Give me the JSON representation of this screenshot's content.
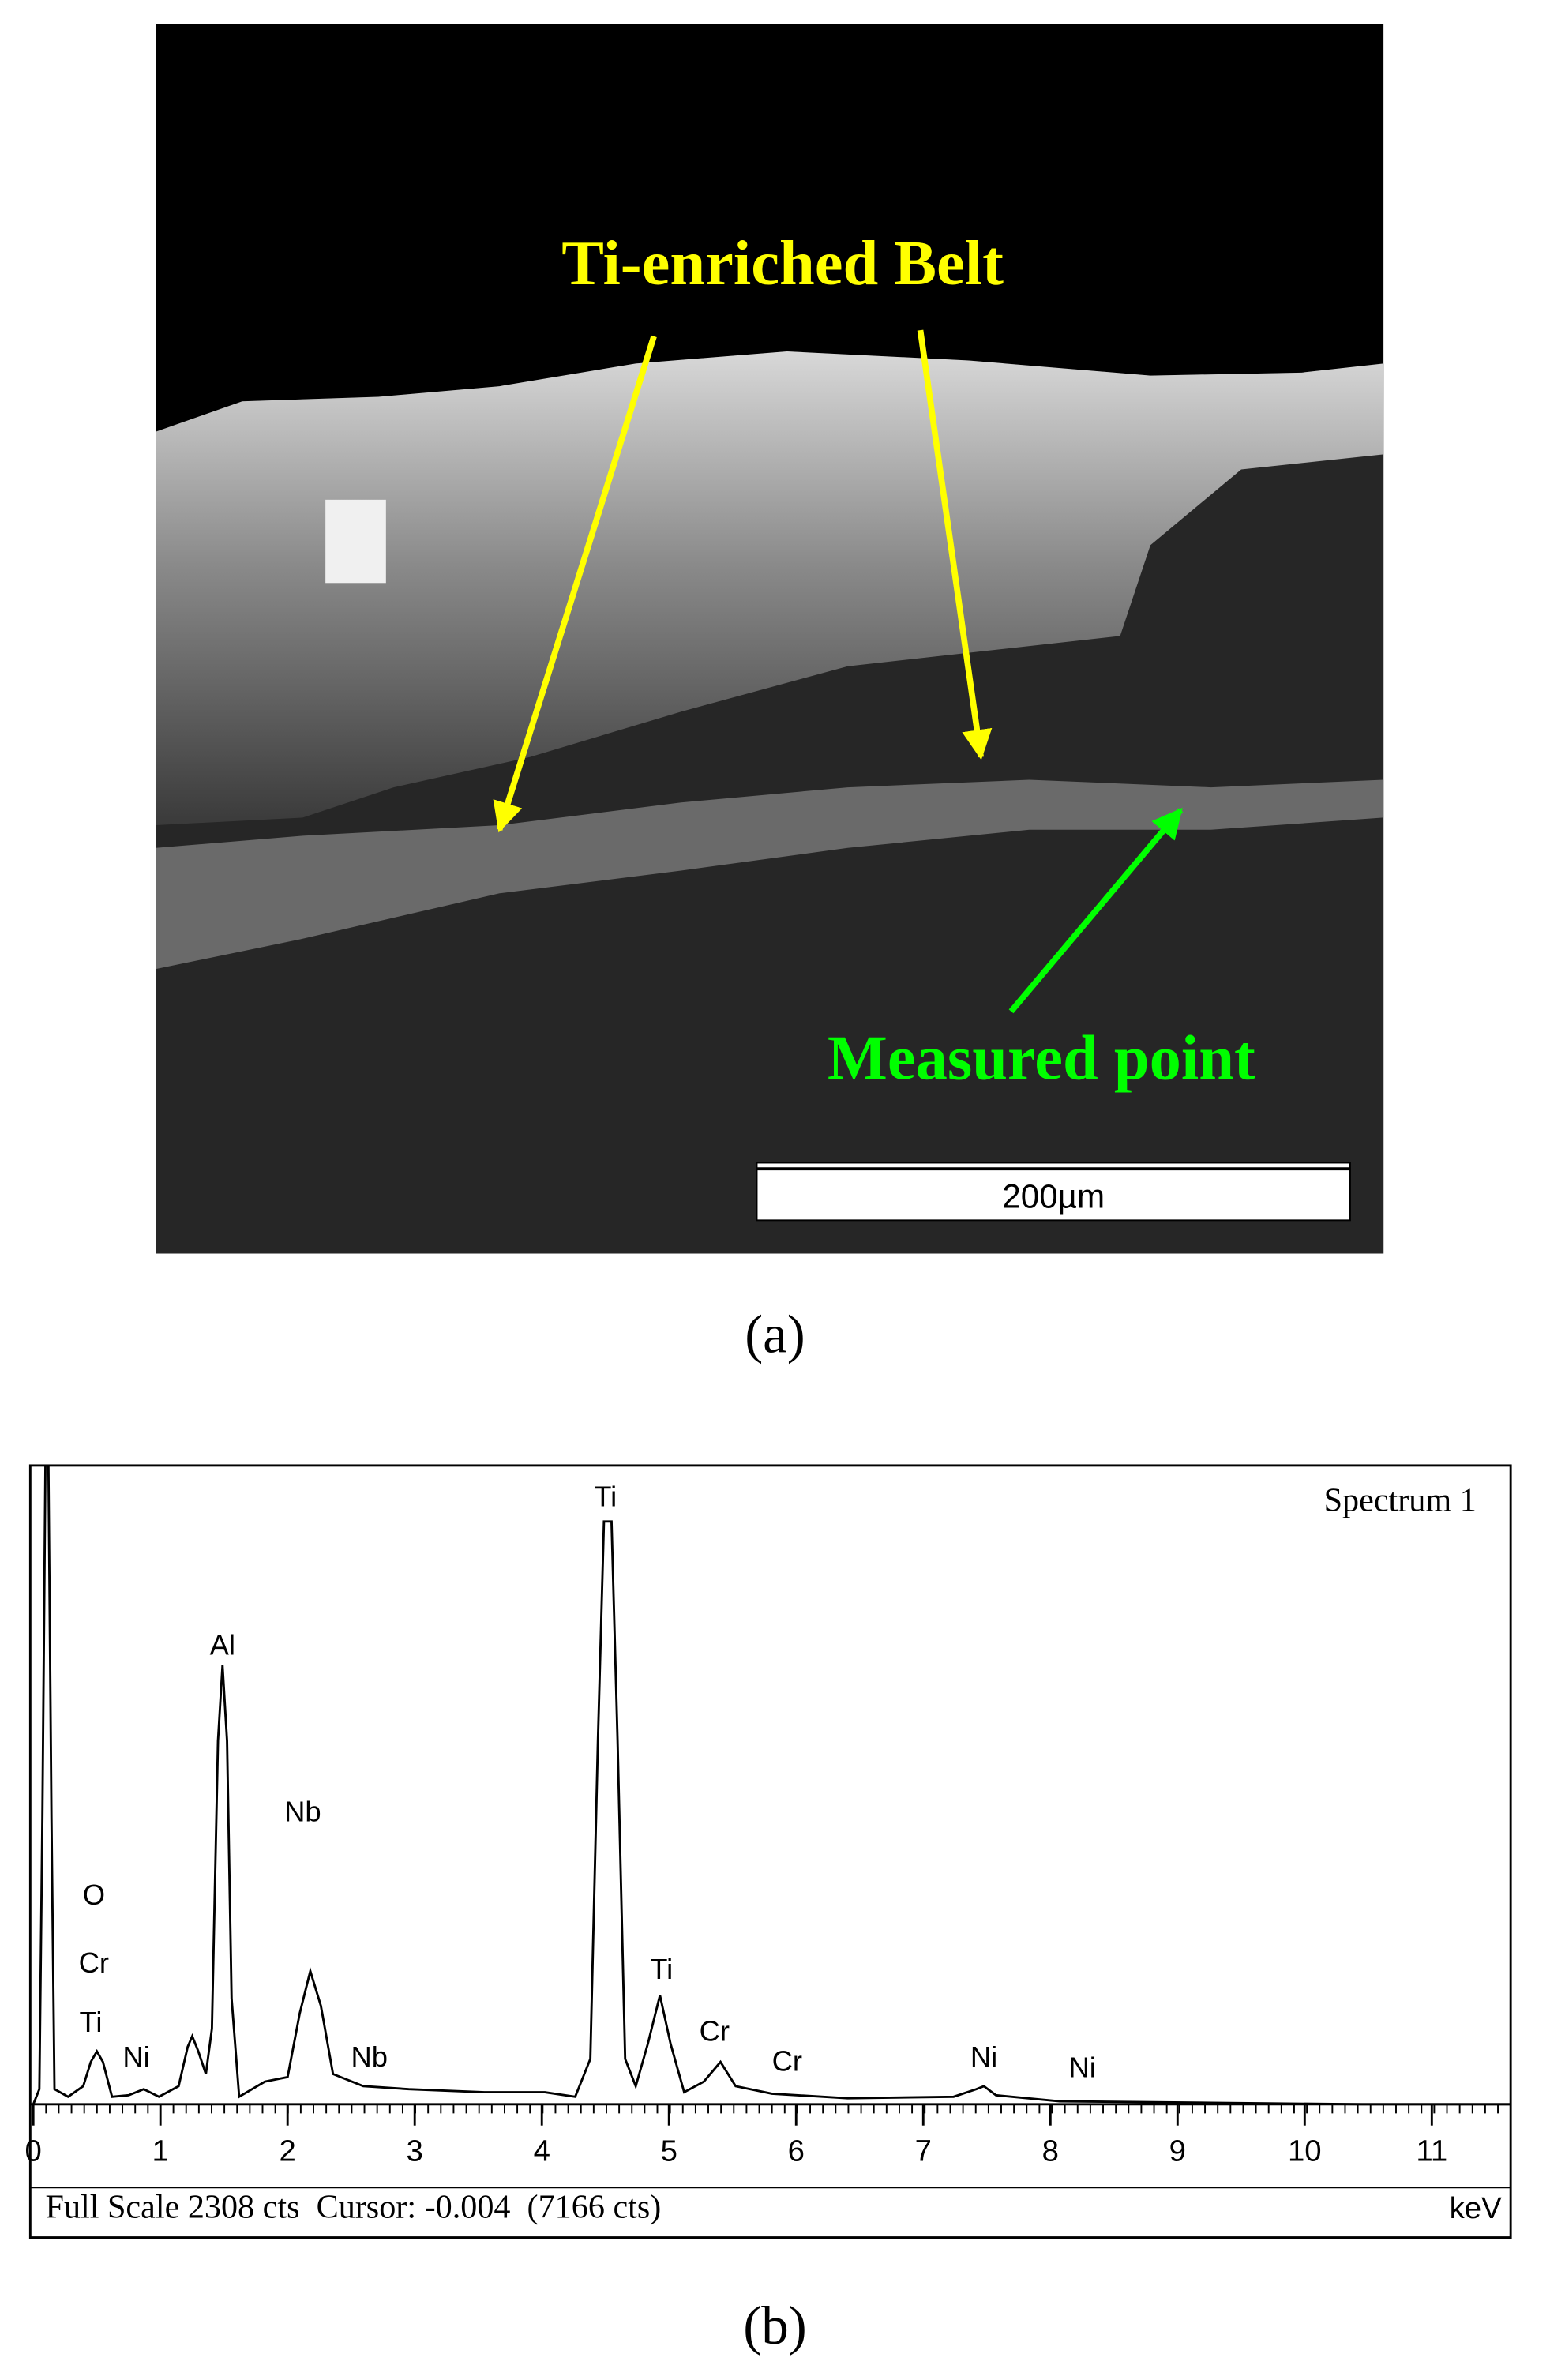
{
  "panel_a": {
    "label": "(a)",
    "annotations": [
      "Ti-enriched Belt",
      "Measured point"
    ],
    "scale_bar": "200µm"
  },
  "panel_b": {
    "type": "spectrum",
    "label": "(b)",
    "title": "Spectrum 1",
    "x_unit": "keV",
    "xlim": [
      0,
      11.62
    ],
    "xticks": [
      0,
      1,
      2,
      3,
      4,
      5,
      6,
      7,
      8,
      9,
      10,
      11
    ],
    "peak_labels": [
      "O",
      "Cr",
      "Ti",
      "Ni",
      "Al",
      "Nb",
      "Nb",
      "Ti",
      "Ti",
      "Cr",
      "Cr",
      "Ni",
      "Ni"
    ],
    "status": "Full Scale 2308 cts  Cursor: -0.004  (7166 cts)"
  }
}
